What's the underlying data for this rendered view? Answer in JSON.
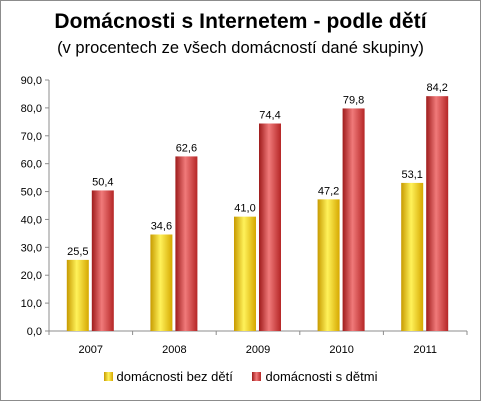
{
  "chart_data": {
    "type": "bar",
    "title": "Domácnosti s Internetem - podle dětí",
    "subtitle": "(v procentech ze všech domácností dané skupiny)",
    "categories": [
      "2007",
      "2008",
      "2009",
      "2010",
      "2011"
    ],
    "series": [
      {
        "name": "domácnosti bez dětí",
        "values": [
          25.5,
          34.6,
          41.0,
          47.2,
          53.1
        ],
        "labels": [
          "25,5",
          "34,6",
          "41,0",
          "47,2",
          "53,1"
        ],
        "color": "#f2c500"
      },
      {
        "name": "domácnosti s dětmi",
        "values": [
          50.4,
          62.6,
          74.4,
          79.8,
          84.2
        ],
        "labels": [
          "50,4",
          "62,6",
          "74,4",
          "79,8",
          "84,2"
        ],
        "color": "#d43b3b"
      }
    ],
    "ylim": [
      0,
      90
    ],
    "yticks": [
      "0,0",
      "10,0",
      "20,0",
      "30,0",
      "40,0",
      "50,0",
      "60,0",
      "70,0",
      "80,0",
      "90,0"
    ],
    "grid": false,
    "legend_position": "bottom"
  }
}
